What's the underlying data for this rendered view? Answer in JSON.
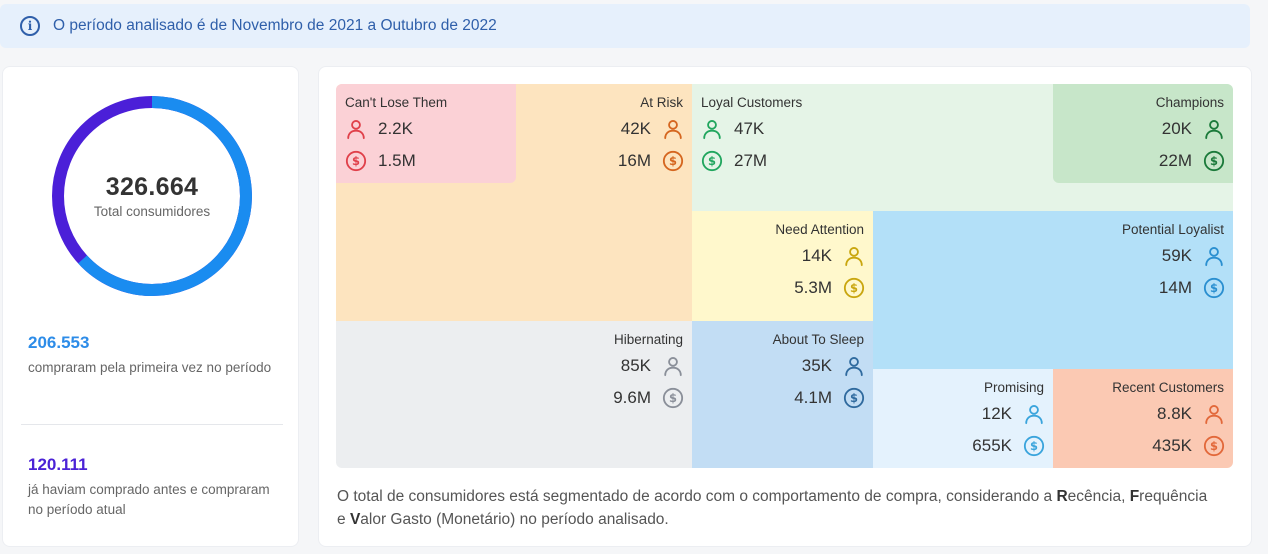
{
  "banner": {
    "icon": "info-icon",
    "text": "O período analisado é de Novembro de 2021 a Outubro de 2022"
  },
  "summary": {
    "total_value": "326.664",
    "total_label": "Total consumidores",
    "donut": {
      "first_time_fraction": 0.632,
      "first_color": "#1a8cf0",
      "returning_color": "#4b1fd8"
    },
    "first_time": {
      "value": "206.553",
      "description": "compraram pela primeira vez no período"
    },
    "returning": {
      "value": "120.111",
      "description": "já haviam comprado antes e compraram no período atual"
    }
  },
  "segments": {
    "cant_lose": {
      "name": "Can't Lose Them",
      "customers": "2.2K",
      "revenue": "1.5M",
      "color": "#e0404a"
    },
    "at_risk": {
      "name": "At Risk",
      "customers": "42K",
      "revenue": "16M",
      "color": "#d5661f"
    },
    "loyal": {
      "name": "Loyal Customers",
      "customers": "47K",
      "revenue": "27M",
      "color": "#21a65e"
    },
    "champions": {
      "name": "Champions",
      "customers": "20K",
      "revenue": "22M",
      "color": "#1b7a3a"
    },
    "need_attention": {
      "name": "Need Attention",
      "customers": "14K",
      "revenue": "5.3M",
      "color": "#c9a60f"
    },
    "potential_loyalist": {
      "name": "Potential Loyalist",
      "customers": "59K",
      "revenue": "14M",
      "color": "#2a8fd0"
    },
    "hibernating": {
      "name": "Hibernating",
      "customers": "85K",
      "revenue": "9.6M",
      "color": "#8a8f99"
    },
    "about_to_sleep": {
      "name": "About To Sleep",
      "customers": "35K",
      "revenue": "4.1M",
      "color": "#2f6a9e"
    },
    "promising": {
      "name": "Promising",
      "customers": "12K",
      "revenue": "655K",
      "color": "#3aa4dc"
    },
    "recent": {
      "name": "Recent Customers",
      "customers": "8.8K",
      "revenue": "435K",
      "color": "#e2683a"
    }
  },
  "footer": {
    "part1": "O total de consumidores está segmentado de acordo com o comportamento de compra, considerando a ",
    "r_letter": "R",
    "r_rest": "ecência, ",
    "f_letter": "F",
    "f_rest": "requência e ",
    "v_letter": "V",
    "v_rest": "alor Gasto (Monetário) no período analisado."
  }
}
